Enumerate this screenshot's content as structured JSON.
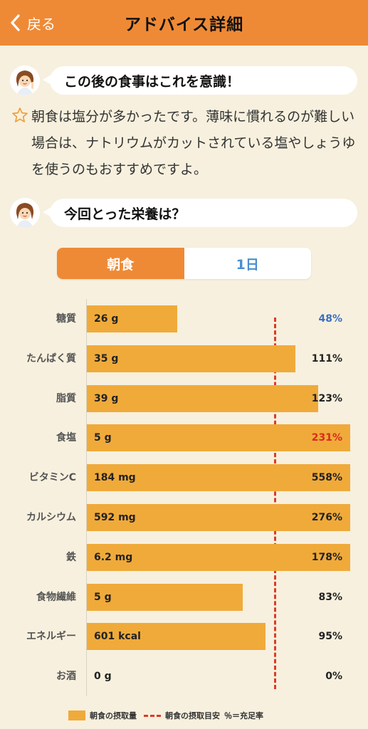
{
  "header": {
    "back_label": "戻る",
    "title": "アドバイス詳細"
  },
  "advice_section": {
    "heading": "この後の食事はこれを意識！",
    "text": "朝食は塩分が多かったです。薄味に慣れるのが難しい場合は、ナトリウムがカットされている塩やしょうゆを使うのもおすすめですよ。"
  },
  "nutrition_section": {
    "heading": "今回とった栄養は？"
  },
  "tabs": [
    {
      "label": "朝食",
      "active": true
    },
    {
      "label": "1日",
      "active": false
    }
  ],
  "colors": {
    "header": "#ee8a36",
    "bar": "#f0aa3a",
    "target_line": "#dd3b24",
    "low_pct": "#3a6fc4",
    "high_pct": "#d92b1f",
    "tab_inactive_text": "#4a8fd0"
  },
  "chart_data": {
    "type": "bar",
    "orientation": "horizontal",
    "target_percent": 100,
    "rows": [
      {
        "label": "糖質",
        "value_text": "26 g",
        "percent": 48,
        "pct_text": "48%",
        "status": "low"
      },
      {
        "label": "たんぱく質",
        "value_text": "35 g",
        "percent": 111,
        "pct_text": "111%",
        "status": "normal"
      },
      {
        "label": "脂質",
        "value_text": "39 g",
        "percent": 123,
        "pct_text": "123%",
        "status": "normal"
      },
      {
        "label": "食塩",
        "value_text": "5 g",
        "percent": 231,
        "pct_text": "231%",
        "status": "high"
      },
      {
        "label": "ビタミンC",
        "value_text": "184 mg",
        "percent": 558,
        "pct_text": "558%",
        "status": "normal"
      },
      {
        "label": "カルシウム",
        "value_text": "592 mg",
        "percent": 276,
        "pct_text": "276%",
        "status": "normal"
      },
      {
        "label": "鉄",
        "value_text": "6.2 mg",
        "percent": 178,
        "pct_text": "178%",
        "status": "normal"
      },
      {
        "label": "食物繊維",
        "value_text": "5 g",
        "percent": 83,
        "pct_text": "83%",
        "status": "normal"
      },
      {
        "label": "エネルギー",
        "value_text": "601 kcal",
        "percent": 95,
        "pct_text": "95%",
        "status": "normal"
      },
      {
        "label": "お酒",
        "value_text": "0 g",
        "percent": 0,
        "pct_text": "0%",
        "status": "normal"
      }
    ]
  },
  "legend": {
    "intake_label": "朝食の摂取量",
    "target_label": "朝食の摂取目安",
    "note": "％＝充足率"
  }
}
